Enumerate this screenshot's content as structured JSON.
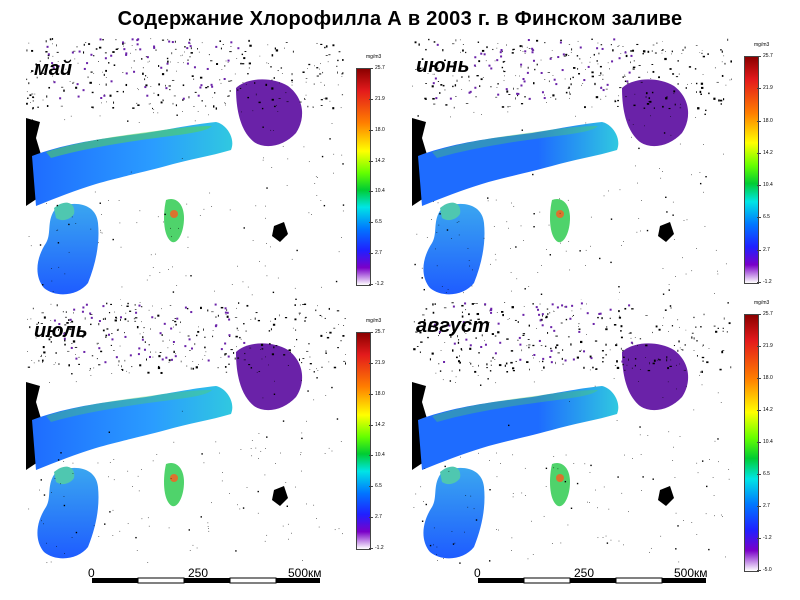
{
  "title": "Содержание  Хлорофилла  А в 2003 г. в Финском заливе",
  "colorbar": {
    "unit": "mg/m3",
    "ticks": [
      "25.7",
      "21.9",
      "18.0",
      "14.2",
      "10.4",
      "6.5",
      "2.7",
      "-1.2"
    ],
    "ticks_aug": [
      "25.7",
      "21.9",
      "18.0",
      "14.2",
      "10.4",
      "6.5",
      "2.7",
      "-1.2",
      "-5.0"
    ]
  },
  "panels": [
    {
      "month": "май",
      "colormap_dominant": "#1a8cff"
    },
    {
      "month": "июнь",
      "colormap_dominant": "#2050ff"
    },
    {
      "month": "июль",
      "colormap_dominant": "#1a8cff"
    },
    {
      "month": "август",
      "colormap_dominant": "#2050ff"
    }
  ],
  "scale_bar": {
    "labels": [
      "0",
      "250",
      "500км"
    ]
  },
  "colors": {
    "lake": "#6a22a8",
    "land": "#ffffff",
    "bay_west": "#1e6cff",
    "bay_east": "#30c8e0",
    "bloom": "#55d650"
  }
}
